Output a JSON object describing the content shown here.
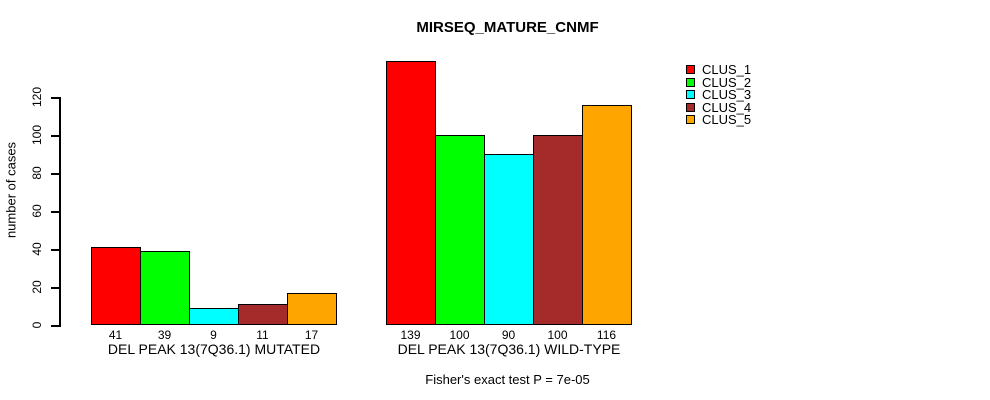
{
  "chart_data": {
    "type": "bar",
    "title": "MIRSEQ_MATURE_CNMF",
    "xlabel": "",
    "ylabel": "number of cases",
    "ylim": [
      0,
      120
    ],
    "yticks": [
      0,
      20,
      40,
      60,
      80,
      100,
      120
    ],
    "categories": [
      "DEL PEAK 13(7Q36.1) MUTATED",
      "DEL PEAK 13(7Q36.1) WILD-TYPE"
    ],
    "series": [
      {
        "name": "CLUS_1",
        "color": "#ff0000",
        "values": [
          41,
          139
        ]
      },
      {
        "name": "CLUS_2",
        "color": "#00ff00",
        "values": [
          39,
          100
        ]
      },
      {
        "name": "CLUS_3",
        "color": "#00ffff",
        "values": [
          9,
          90
        ]
      },
      {
        "name": "CLUS_4",
        "color": "#a52a2a",
        "values": [
          11,
          100
        ]
      },
      {
        "name": "CLUS_5",
        "color": "#ffa500",
        "values": [
          17,
          116
        ]
      }
    ],
    "bar_value_labels": [
      [
        "41",
        "39",
        "9",
        "11",
        "17"
      ],
      [
        "139",
        "100",
        "90",
        "100",
        "116"
      ]
    ],
    "legend_position": "right",
    "grid": false,
    "annotation": "Fisher's exact test P = 7e-05"
  }
}
